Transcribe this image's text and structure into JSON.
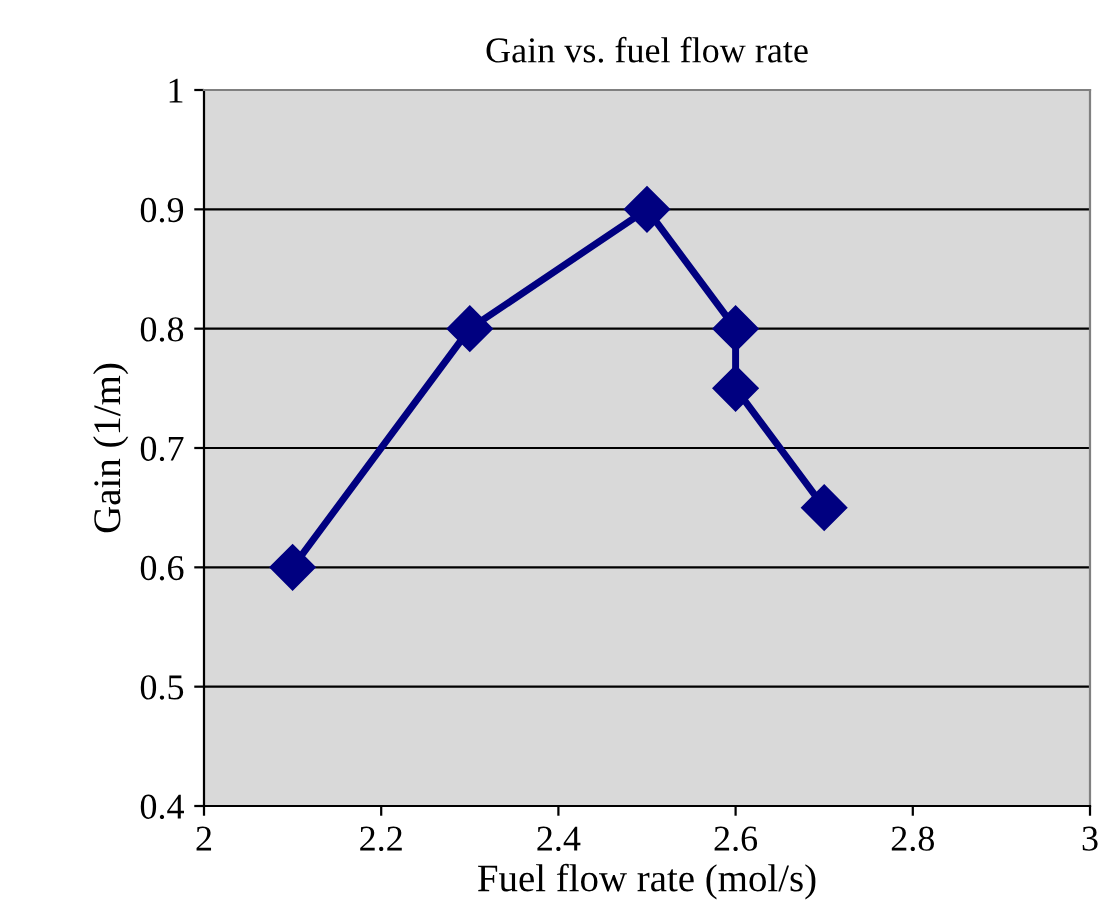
{
  "chart_data": {
    "type": "line",
    "title": "Gain vs. fuel flow rate",
    "xlabel": "Fuel flow rate (mol/s)",
    "ylabel": "Gain (1/m)",
    "series": [
      {
        "color": "#000080",
        "x": [
          2.1,
          2.3,
          2.5,
          2.6,
          2.6,
          2.7
        ],
        "values": [
          0.6,
          0.8,
          0.9,
          0.8,
          0.75,
          0.65
        ]
      }
    ],
    "xlim": [
      2,
      3
    ],
    "xticks": [
      2,
      2.2,
      2.4,
      2.6,
      2.8,
      3
    ],
    "ylim": [
      0.4,
      1
    ],
    "yticks": [
      0.4,
      0.5,
      0.6,
      0.7,
      0.8,
      0.9,
      1
    ],
    "grid": "y",
    "marker": "diamond",
    "line_style": "solid"
  }
}
